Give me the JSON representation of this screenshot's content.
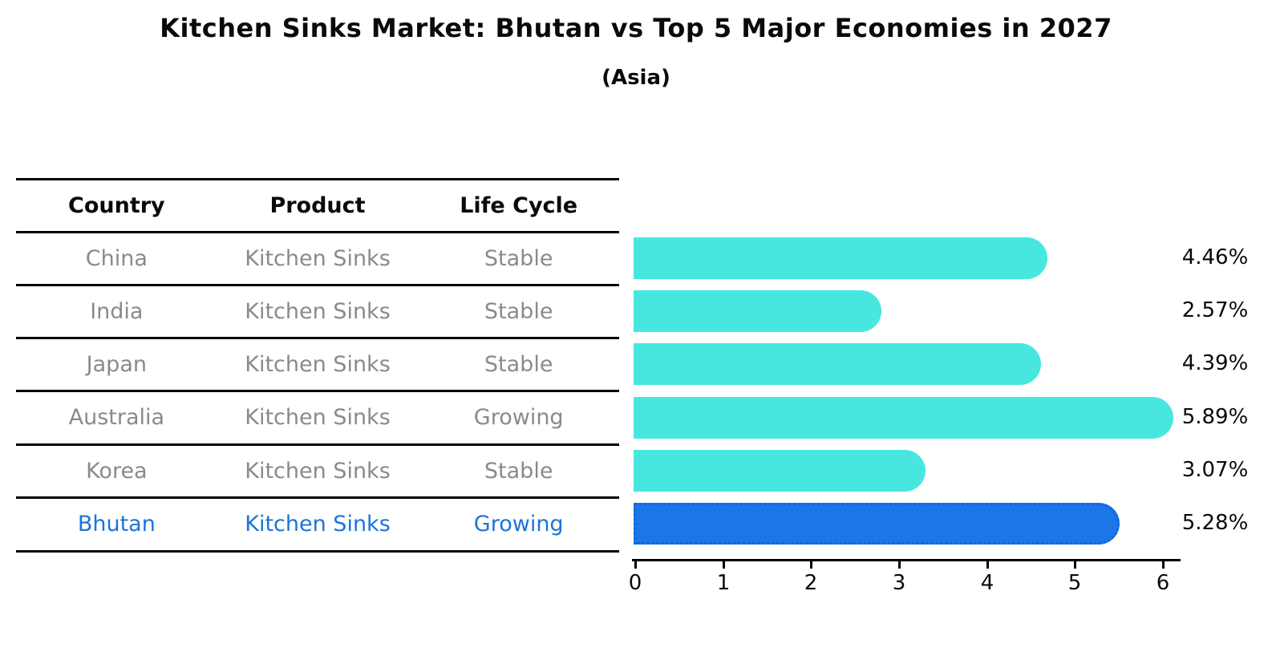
{
  "title": "Kitchen Sinks Market: Bhutan vs Top 5 Major Economies in 2027",
  "subtitle": "(Asia)",
  "table": {
    "headers": [
      "Country",
      "Product",
      "Life Cycle"
    ],
    "rows": [
      {
        "country": "China",
        "product": "Kitchen Sinks",
        "life_cycle": "Stable"
      },
      {
        "country": "India",
        "product": "Kitchen Sinks",
        "life_cycle": "Stable"
      },
      {
        "country": "Japan",
        "product": "Kitchen Sinks",
        "life_cycle": "Stable"
      },
      {
        "country": "Australia",
        "product": "Kitchen Sinks",
        "life_cycle": "Growing"
      },
      {
        "country": "Korea",
        "product": "Kitchen Sinks",
        "life_cycle": "Stable"
      },
      {
        "country": "Bhutan",
        "product": "Kitchen Sinks",
        "life_cycle": "Growing"
      }
    ],
    "highlight_row": "Bhutan"
  },
  "chart_data": {
    "type": "bar",
    "orientation": "horizontal",
    "title": "Kitchen Sinks Market: Bhutan vs Top 5 Major Economies in 2027",
    "subtitle": "(Asia)",
    "categories": [
      "China",
      "India",
      "Japan",
      "Australia",
      "Korea",
      "Bhutan"
    ],
    "values": [
      4.46,
      2.57,
      4.39,
      5.89,
      3.07,
      5.28
    ],
    "value_labels": [
      "4.46%",
      "2.57%",
      "4.39%",
      "5.89%",
      "3.07%",
      "5.28%"
    ],
    "unit": "%",
    "x_ticks": [
      "0",
      "1",
      "2",
      "3",
      "4",
      "5",
      "6"
    ],
    "xlim": [
      0,
      6.2
    ],
    "grid": false,
    "legend": false,
    "bar_color": "#47E7E0",
    "highlight_index": 5,
    "highlight_color": "#1D76E8",
    "highlight_edge_color": "#0D66DD"
  },
  "colors": {
    "body_text": "#8a8a8a",
    "header_text": "#0a0a0a",
    "highlight": "#1B74D8",
    "axis": "#000000"
  }
}
